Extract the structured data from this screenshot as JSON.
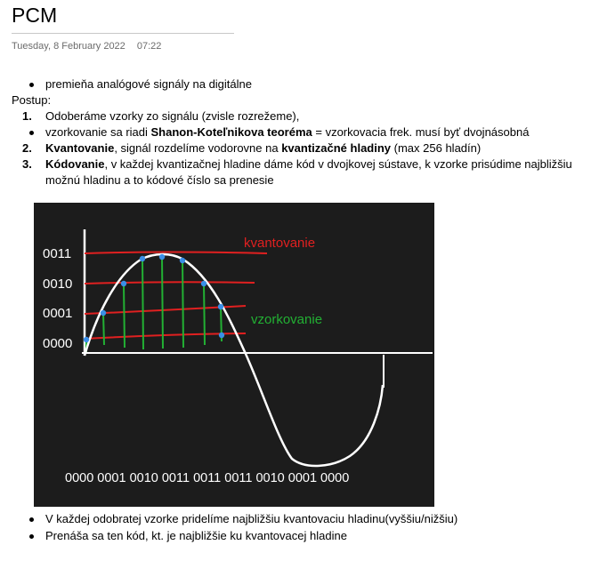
{
  "page": {
    "title": "PCM",
    "date": "Tuesday, 8 February 2022",
    "time": "07:22"
  },
  "content": {
    "bullet_intro": "premieňa analógové signály na digitálne",
    "postup_label": "Postup:",
    "steps": [
      {
        "num": "1.",
        "text": "Odoberáme vzorky zo signálu (zvisle rozrežeme),"
      },
      {
        "sub_prefix": "vzorkovanie sa riadi ",
        "sub_bold": "Shanon-Koteľnikova teoréma",
        "sub_suffix": " = vzorkovacia frek. musí byť dvojnásobná"
      },
      {
        "num": "2.",
        "bold": "Kvantovanie",
        "mid": ", signál rozdelíme vodorovne na ",
        "bold2": "kvantizačné hladiny",
        "suffix": " (max 256 hladín)"
      },
      {
        "num": "3.",
        "bold": "Kódovanie",
        "mid": ", v každej kvantizačnej hladine dáme kód v dvojkovej sústave, k vzorke prisúdime najbližšiu",
        "line2": "možnú hladinu a to kódové číslo sa prenesie"
      }
    ],
    "bullets_after": [
      "V každej odobratej vzorke pridelíme najbližšiu kvantovaciu hladinu(vyššiu/nižšiu)",
      "Prenáša sa ten kód, kt. je najbližšie ku kvantovacej hladine"
    ]
  },
  "figure": {
    "level_labels": [
      "0011",
      "0010",
      "0001",
      "0000"
    ],
    "kvantovanie_label": "kvantovanie",
    "vzorkovanie_label": "vzorkovanie",
    "code_sequence": "0000 0001 0010 0011 0011 0011 0010 0001 0000",
    "colors": {
      "background": "#1c1c1c",
      "curve": "#ffffff",
      "quant_lines": "#e02020",
      "sample_lines": "#22b033",
      "sample_points": "#3a8fe8"
    }
  }
}
